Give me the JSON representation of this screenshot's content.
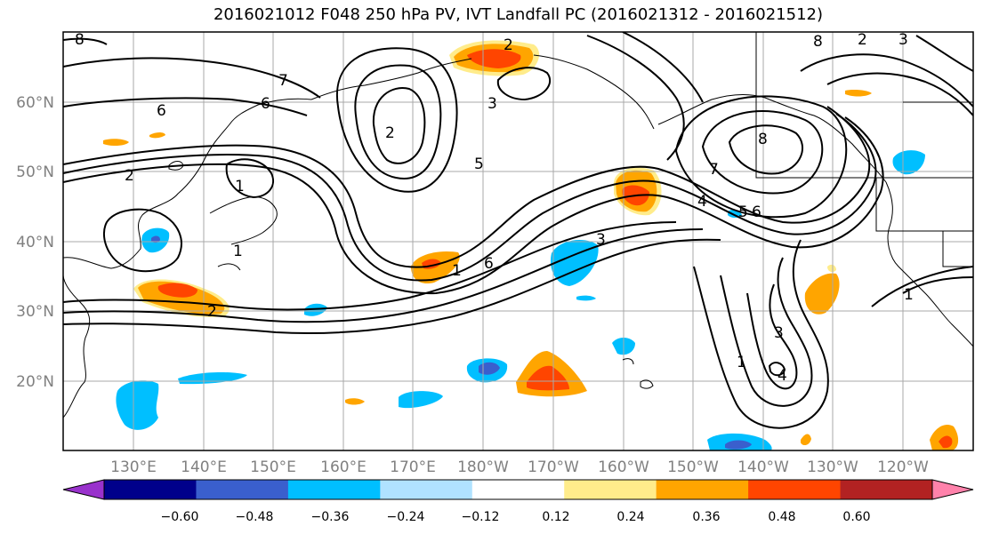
{
  "title": "2016021012 F048 250 hPa PV, IVT Landfall PC (2016021312 - 2016021512)",
  "lat_labels": [
    "60°N",
    "50°N",
    "40°N",
    "30°N",
    "20°N"
  ],
  "lon_labels": [
    "130°E",
    "140°E",
    "150°E",
    "160°E",
    "170°E",
    "180°W",
    "170°W",
    "160°W",
    "150°W",
    "140°W",
    "130°W",
    "120°W"
  ],
  "colorbar": {
    "ticks": [
      "−0.60",
      "−0.48",
      "−0.36",
      "−0.24",
      "−0.12",
      "0.12",
      "0.24",
      "0.36",
      "0.48",
      "0.60"
    ],
    "colors": [
      "#9932cc",
      "#00008b",
      "#3a5fcd",
      "#00bfff",
      "#b0e2ff",
      "#ffffff",
      "#ffec8b",
      "#ffa500",
      "#ff4500",
      "#b22222",
      "#ff82ab"
    ]
  },
  "contour_labels": [
    "8",
    "7",
    "6",
    "6",
    "2",
    "3",
    "2",
    "5",
    "1",
    "2",
    "1",
    "3",
    "6",
    "1",
    "4",
    "5",
    "6",
    "7",
    "8",
    "3",
    "1",
    "4",
    "1",
    "3",
    "2",
    "8",
    "2"
  ]
}
